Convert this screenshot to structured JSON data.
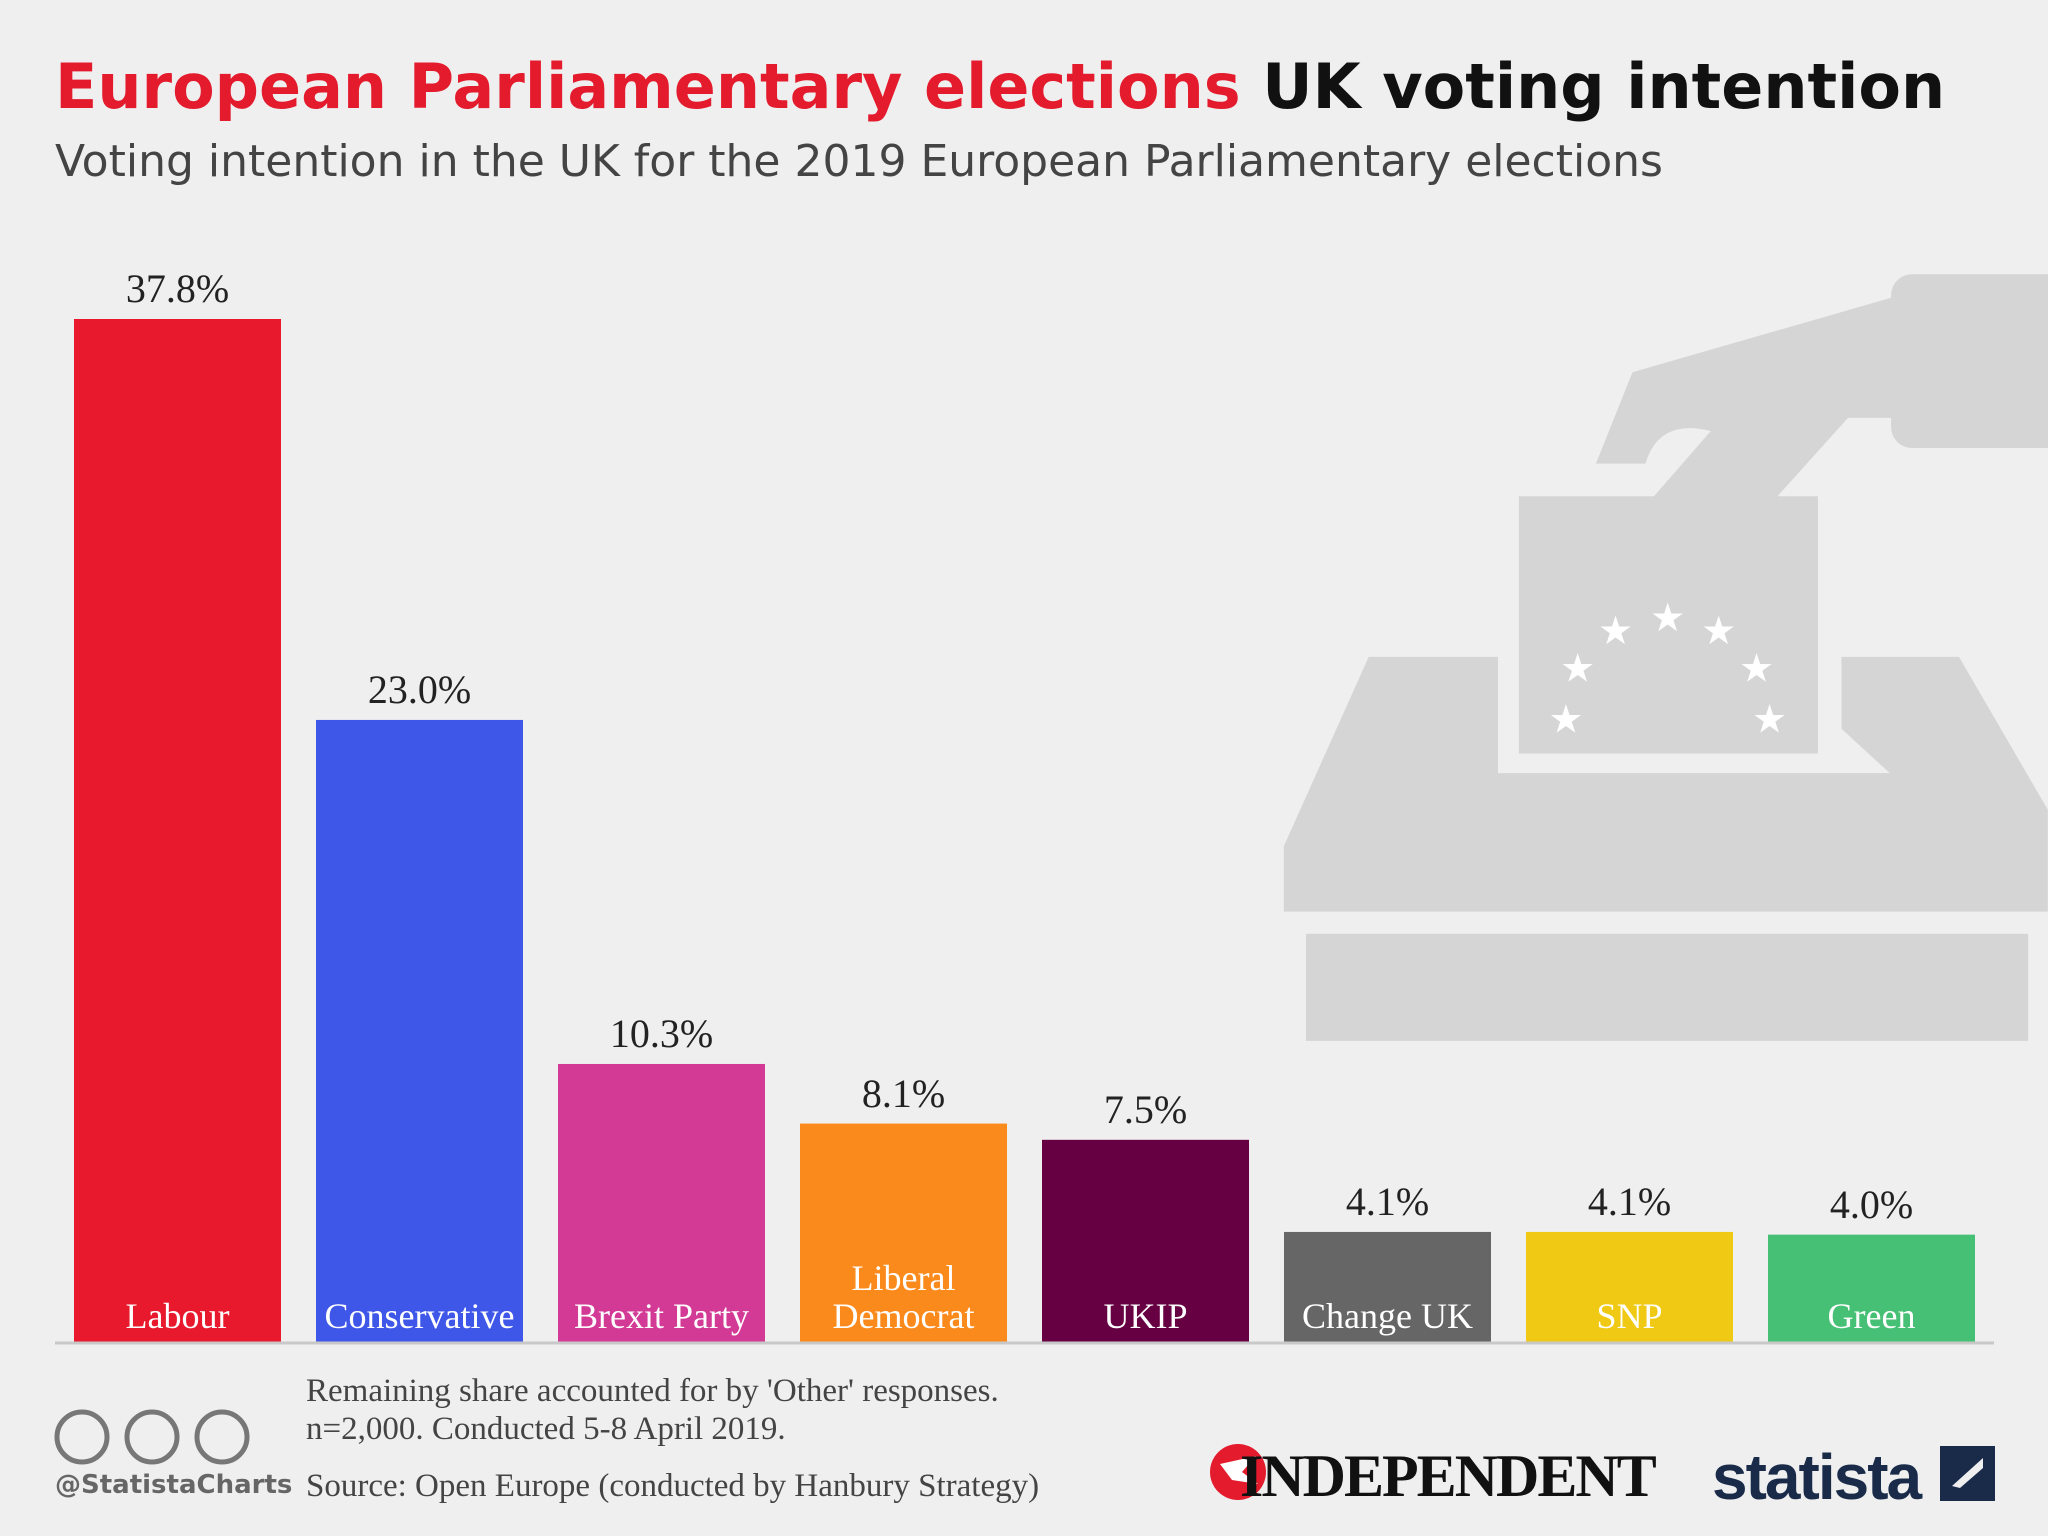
{
  "chart_data": {
    "type": "bar",
    "title_highlight": "European Parliamentary elections",
    "title": "UK voting intention",
    "subtitle": "Voting intention in the UK for the 2019 European Parliamentary elections",
    "categories": [
      "Labour",
      "Conservative",
      "Brexit Party",
      "Liberal Democrat",
      "UKIP",
      "Change UK",
      "SNP",
      "Green"
    ],
    "values": [
      37.8,
      23.0,
      10.3,
      8.1,
      7.5,
      4.1,
      4.1,
      4.0
    ],
    "value_labels": [
      "37.8%",
      "23.0%",
      "10.3%",
      "8.1%",
      "7.5%",
      "4.1%",
      "4.1%",
      "4.0%"
    ],
    "colors": [
      "#e8192c",
      "#3f57e8",
      "#d23a96",
      "#fb8a1c",
      "#660042",
      "#666666",
      "#efc914",
      "#46c074"
    ],
    "notes": [
      "Remaining share accounted for by 'Other' responses.",
      "n=2,000. Conducted 5-8 April 2019."
    ],
    "source": "Source: Open Europe (conducted by Hanbury Strategy)",
    "credit": "@StatistaCharts",
    "partner_logo": "INDEPENDENT",
    "brand_logo": "statista"
  }
}
